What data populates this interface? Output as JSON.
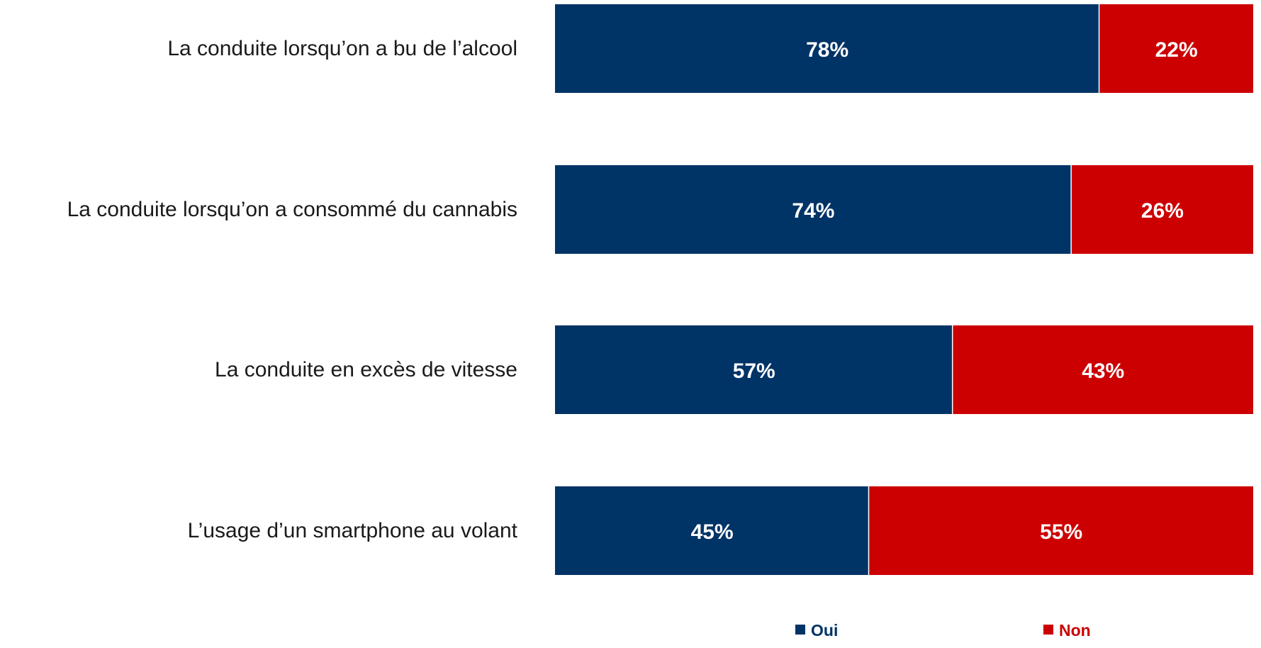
{
  "chart_data": {
    "type": "bar",
    "orientation": "horizontal",
    "stacked": true,
    "normalized": true,
    "categories": [
      "La conduite lorsqu’on a bu de l’alcool",
      "La conduite lorsqu’on a consommé du cannabis",
      "La conduite en excès de vitesse",
      "L’usage d’un smartphone au volant"
    ],
    "series": [
      {
        "name": "Oui",
        "color": "#003366",
        "values": [
          78,
          74,
          57,
          45
        ],
        "labels": [
          "78%",
          "74%",
          "57%",
          "45%"
        ]
      },
      {
        "name": "Non",
        "color": "#cc0000",
        "values": [
          22,
          26,
          43,
          55
        ],
        "labels": [
          "22%",
          "26%",
          "43%",
          "55%"
        ]
      }
    ],
    "xlim": [
      0,
      100
    ],
    "grid": false,
    "legend_position": "bottom",
    "title": "",
    "xlabel": "",
    "ylabel": ""
  }
}
